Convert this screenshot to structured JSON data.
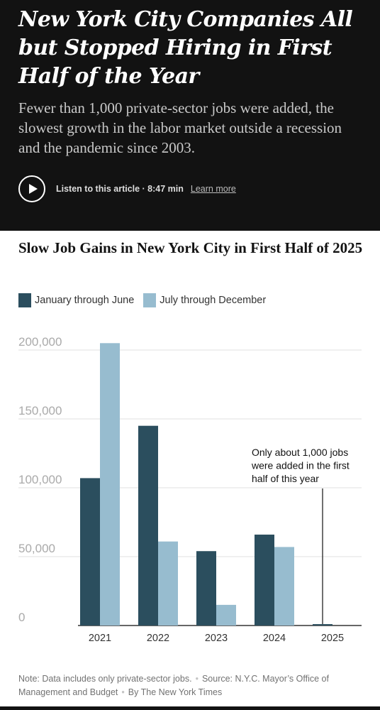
{
  "article": {
    "headline": "New York City Companies All but Stopped Hiring in First Half of the Year",
    "dek": "Fewer than 1,000 private-sector jobs were added, the slowest growth in the labor market outside a recession and the pandemic since 2003.",
    "listen_label": "Listen to this article · 8:47 min",
    "learn_more_label": "Learn more",
    "play_icon": "play-icon"
  },
  "colors": {
    "background_top": "#121212",
    "series_first_half": "#2b4e5e",
    "series_second_half": "#97bccf"
  },
  "chart_data": {
    "type": "bar",
    "title": "Slow Job Gains in New York City in First Half of 2025",
    "categories": [
      "2021",
      "2022",
      "2023",
      "2024",
      "2025"
    ],
    "series": [
      {
        "name": "January through June",
        "color": "#2b4e5e",
        "values": [
          107000,
          145000,
          54000,
          66000,
          1000
        ]
      },
      {
        "name": "July through December",
        "color": "#97bccf",
        "values": [
          205000,
          61000,
          15000,
          57000,
          null
        ]
      }
    ],
    "yticks": [
      0,
      50000,
      100000,
      150000,
      200000
    ],
    "ytick_labels": [
      "0",
      "50,000",
      "100,000",
      "150,000",
      "200,000"
    ],
    "ylim": [
      0,
      200000
    ],
    "grid": true,
    "legend_position": "top-left",
    "annotation": {
      "category": "2025",
      "lines": [
        "Only about 1,000 jobs",
        "were added in the first",
        "half of this year"
      ]
    },
    "note": "Note: Data includes only private-sector jobs.",
    "source": "Source: N.Y.C. Mayor’s Office of Management and Budget",
    "credit": "By The New York Times"
  }
}
